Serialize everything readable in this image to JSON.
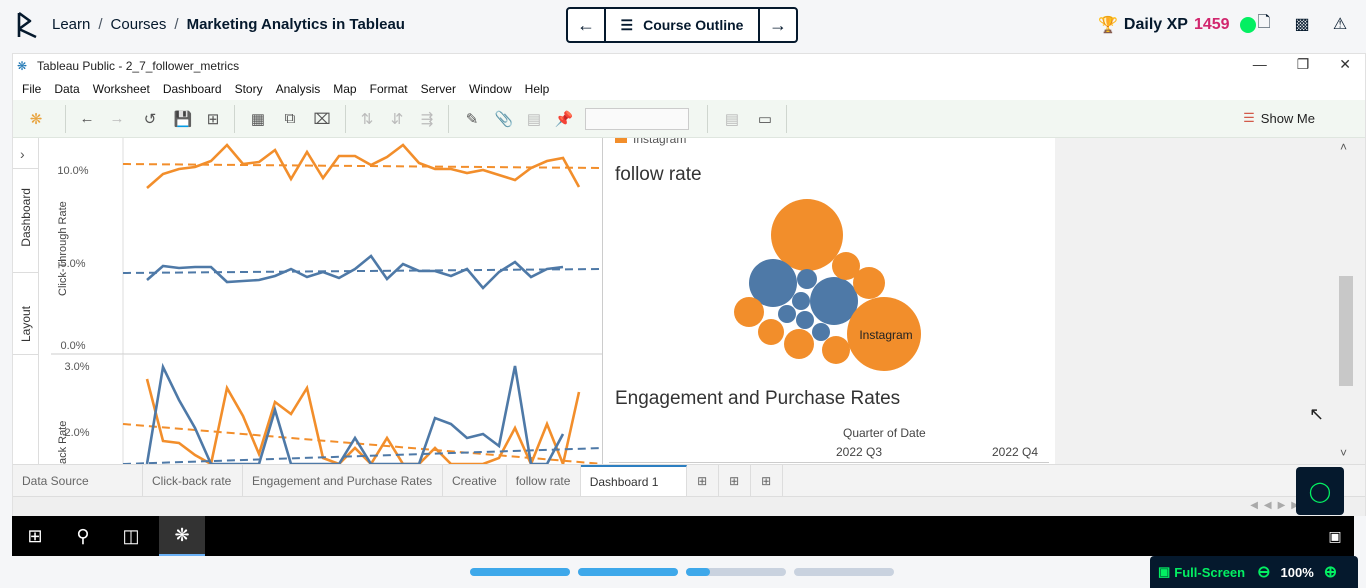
{
  "breadcrumb": {
    "items": [
      "Learn",
      "Courses",
      "Marketing Analytics in Tableau"
    ],
    "separator": "/"
  },
  "nav": {
    "outline_label": "Course Outline"
  },
  "xp": {
    "label": "Daily XP",
    "value": "1459"
  },
  "window": {
    "title": "Tableau Public - 2_7_follower_metrics"
  },
  "menu": [
    "File",
    "Data",
    "Worksheet",
    "Dashboard",
    "Story",
    "Analysis",
    "Map",
    "Format",
    "Server",
    "Window",
    "Help"
  ],
  "toolbar": {
    "show_me_label": "Show Me"
  },
  "side_tabs": [
    "Dashboard",
    "Layout"
  ],
  "left_panel": {
    "chart1": {
      "ylabel": "Click-Through Rate",
      "ticks": [
        "10.0%",
        "5.0%",
        "0.0%"
      ]
    },
    "chart2": {
      "ylabel": "ack Rate",
      "ticks": [
        "3.0%",
        "2.0%"
      ]
    }
  },
  "right_panel": {
    "legend_partial": "Instagram",
    "follow_rate_title": "follow rate",
    "bubble_label": "Instagram",
    "engagement_title": "Engagement and Purchase Rates",
    "quarter_header": "Quarter of Date",
    "quarters": [
      "2022 Q3",
      "2022 Q4"
    ]
  },
  "sheet_tabs": [
    "Data Source",
    "Click-back rate",
    "Engagement and Purchase Rates",
    "Creative",
    "follow rate",
    "Dashboard 1"
  ],
  "active_tab": "Dashboard 1",
  "fullscreen": {
    "label": "Full-Screen",
    "zoom": "100%"
  },
  "progress": [
    1.0,
    1.0,
    0.24,
    0.0
  ],
  "colors": {
    "orange": "#f28e2b",
    "blue": "#4e79a7",
    "brand_dark": "#05192d",
    "brand_green": "#03ef62",
    "xp_pink": "#d1266e",
    "progress_blue": "#3ea8ea"
  }
}
